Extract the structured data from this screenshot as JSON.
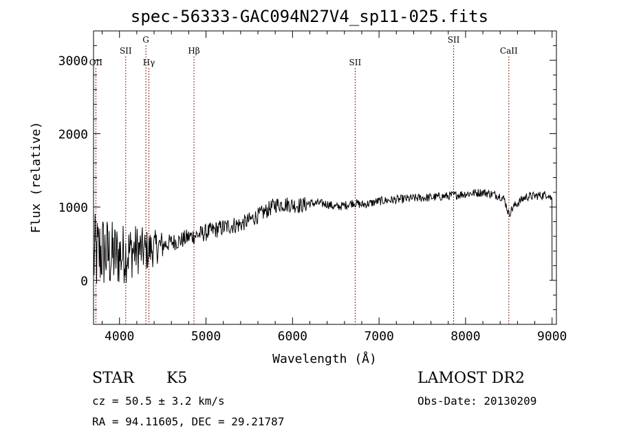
{
  "chart_data": {
    "type": "line",
    "title": "spec-56333-GAC094N27V4_sp11-025.fits",
    "xlabel": "Wavelength (Å)",
    "ylabel": "Flux (relative)",
    "xlim": [
      3700,
      9050
    ],
    "ylim": [
      -600,
      3400
    ],
    "xticks": [
      4000,
      5000,
      6000,
      7000,
      8000,
      9000
    ],
    "yticks": [
      0,
      1000,
      2000,
      3000
    ],
    "grid": false,
    "line_color": "#000000",
    "marker_color": "#8b1a1a",
    "lines": [
      {
        "label": "OII",
        "x": 3727,
        "tier": "bottom"
      },
      {
        "label": "SII",
        "x": 4072,
        "tier": "middle"
      },
      {
        "label": "G",
        "x": 4305,
        "tier": "top"
      },
      {
        "label": "Hγ",
        "x": 4340,
        "tier": "bottom"
      },
      {
        "label": "Hβ",
        "x": 4861,
        "tier": "middle"
      },
      {
        "label": "SII",
        "x": 6724,
        "tier": "bottom"
      },
      {
        "label": "SII",
        "x": 7862,
        "tier": "top"
      },
      {
        "label": "CaII",
        "x": 8500,
        "tier": "middle"
      }
    ],
    "series": [
      {
        "x": [
          3700,
          3800,
          3900,
          4000,
          4100,
          4200,
          4300,
          4400,
          4500,
          4600,
          4700,
          4800,
          4900,
          5000,
          5100,
          5200,
          5300,
          5400,
          5500,
          5600,
          5700,
          5800,
          5900,
          6000,
          6100,
          6200,
          6300,
          6400,
          6500,
          6600,
          6700,
          6800,
          6900,
          7000,
          7200,
          7400,
          7600,
          7800,
          8000,
          8200,
          8400,
          8450,
          8500,
          8550,
          8650,
          8700,
          8800,
          8900,
          8950,
          9000
        ],
        "values": [
          300,
          400,
          330,
          350,
          380,
          420,
          400,
          440,
          480,
          520,
          540,
          590,
          620,
          650,
          690,
          720,
          750,
          760,
          820,
          880,
          950,
          1030,
          1040,
          1030,
          1020,
          1050,
          1050,
          1040,
          1000,
          1020,
          1060,
          1030,
          1050,
          1080,
          1100,
          1120,
          1130,
          1150,
          1180,
          1200,
          1150,
          1100,
          900,
          1000,
          1100,
          1140,
          1150,
          1160,
          1180,
          1100
        ]
      }
    ]
  },
  "footer": {
    "class_label": "STAR",
    "subclass": "K5",
    "survey": "LAMOST DR2",
    "cz": "cz = 50.5 ± 3.2 km/s",
    "obs_date": "Obs-Date: 20130209",
    "coords": "RA =  94.11605, DEC =  29.21787"
  }
}
